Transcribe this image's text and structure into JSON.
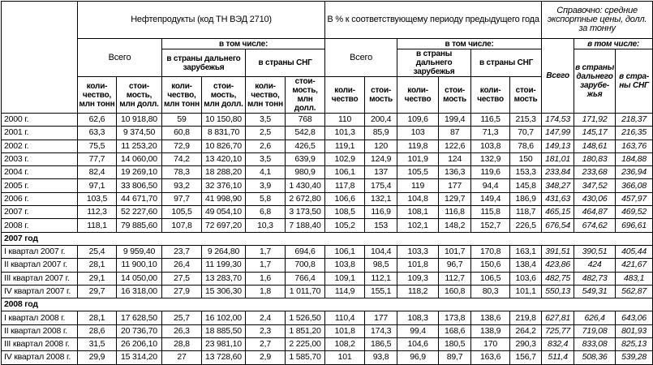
{
  "header": {
    "main_title": "Нефтепродукты (код ТН ВЭД 2710)",
    "pct_title": "В % к соответствующему периоду предыдущего года",
    "ref_title": "Справочно: средние экспортные цены, долл. за тонну",
    "total": "Всего",
    "including": "в том числе:",
    "far_abroad": "в страны дальнего зарубежья",
    "cis": "в страны СНГ",
    "qty_unit": "коли-чество, млн тонн",
    "val_unit": "стои-мость, млн долл.",
    "qty_pct": "коли-чество",
    "val_pct": "стои-мость",
    "ref_total": "Всего",
    "ref_including": "в том числе:",
    "ref_far_abroad": "в страны дальнего зарубе-жья",
    "ref_cis": "в стра-ны СНГ"
  },
  "sections": [
    {
      "title": "",
      "rows": [
        {
          "label": "2000 г.",
          "values": [
            "62,6",
            "10 918,80",
            "59",
            "10 150,80",
            "3,5",
            "768",
            "110",
            "200,4",
            "109,6",
            "199,4",
            "116,5",
            "215,3",
            "174,53",
            "171,92",
            "218,37"
          ]
        },
        {
          "label": "2001 г.",
          "values": [
            "63,3",
            "9 374,50",
            "60,8",
            "8 831,70",
            "2,5",
            "542,8",
            "101,3",
            "85,9",
            "103",
            "87",
            "71,3",
            "70,7",
            "147,99",
            "145,17",
            "216,35"
          ]
        },
        {
          "label": "2002 г.",
          "values": [
            "75,5",
            "11 253,20",
            "72,9",
            "10 826,70",
            "2,6",
            "426,5",
            "119,1",
            "120",
            "119,8",
            "122,6",
            "103,8",
            "78,6",
            "149,13",
            "148,61",
            "163,76"
          ]
        },
        {
          "label": "2003 г.",
          "values": [
            "77,7",
            "14 060,00",
            "74,2",
            "13 420,10",
            "3,5",
            "639,9",
            "102,9",
            "124,9",
            "101,9",
            "124",
            "132,9",
            "150",
            "181,01",
            "180,83",
            "184,88"
          ]
        },
        {
          "label": "2004 г.",
          "values": [
            "82,4",
            "19 269,10",
            "78,3",
            "18 288,20",
            "4,1",
            "980,9",
            "106,1",
            "137",
            "105,5",
            "136,3",
            "119,6",
            "153,3",
            "233,84",
            "233,68",
            "236,94"
          ]
        },
        {
          "label": "2005 г.",
          "values": [
            "97,1",
            "33 806,50",
            "93,2",
            "32 376,10",
            "3,9",
            "1 430,40",
            "117,8",
            "175,4",
            "119",
            "177",
            "94,4",
            "145,8",
            "348,27",
            "347,52",
            "366,08"
          ]
        },
        {
          "label": "2006 г.",
          "values": [
            "103,5",
            "44 671,70",
            "97,7",
            "41 998,90",
            "5,8",
            "2 672,80",
            "106,6",
            "132,1",
            "104,8",
            "129,7",
            "149,4",
            "186,9",
            "431,63",
            "430,06",
            "457,97"
          ]
        },
        {
          "label": "2007 г.",
          "values": [
            "112,3",
            "52 227,60",
            "105,5",
            "49 054,10",
            "6,8",
            "3 173,50",
            "108,5",
            "116,9",
            "108,1",
            "116,8",
            "115,8",
            "118,7",
            "465,15",
            "464,87",
            "469,52"
          ]
        },
        {
          "label": "2008 г.",
          "values": [
            "118,1",
            "79 885,60",
            "107,8",
            "72 697,20",
            "10,3",
            "7 188,40",
            "105,2",
            "153",
            "102,1",
            "148,2",
            "152,7",
            "226,5",
            "676,54",
            "674,62",
            "696,61"
          ]
        }
      ]
    },
    {
      "title": "2007 год",
      "rows": [
        {
          "label": "I квартал 2007 г.",
          "values": [
            "25,4",
            "9 959,40",
            "23,7",
            "9 264,80",
            "1,7",
            "694,6",
            "106,1",
            "104,4",
            "103,3",
            "101,7",
            "170,8",
            "163,1",
            "391,51",
            "390,51",
            "405,44"
          ]
        },
        {
          "label": "II квартал 2007 г.",
          "values": [
            "28,1",
            "11 900,10",
            "26,4",
            "11 199,30",
            "1,7",
            "700,8",
            "103,8",
            "98,5",
            "101,8",
            "96,7",
            "150,6",
            "138,4",
            "423,86",
            "424",
            "421,67"
          ]
        },
        {
          "label": "III квартал 2007 г.",
          "values": [
            "29,1",
            "14 050,00",
            "27,5",
            "13 283,70",
            "1,6",
            "766,4",
            "109,1",
            "112,1",
            "109,3",
            "112,7",
            "106,5",
            "103,6",
            "482,75",
            "482,73",
            "483,1"
          ]
        },
        {
          "label": "IV квартал 2007 г.",
          "values": [
            "29,7",
            "16 318,00",
            "27,9",
            "15 306,30",
            "1,8",
            "1 011,70",
            "114,9",
            "155,1",
            "118,2",
            "160,8",
            "80,3",
            "101,1",
            "550,13",
            "549,31",
            "562,87"
          ]
        }
      ]
    },
    {
      "title": "2008 год",
      "rows": [
        {
          "label": "I квартал 2008 г.",
          "values": [
            "28,1",
            "17 628,50",
            "25,7",
            "16 102,00",
            "2,4",
            "1 526,50",
            "110,4",
            "177",
            "108,3",
            "173,8",
            "138,6",
            "219,8",
            "627,81",
            "626,4",
            "643,06"
          ]
        },
        {
          "label": "II квартал 2008 г.",
          "values": [
            "28,6",
            "20 736,70",
            "26,3",
            "18 885,50",
            "2,3",
            "1 851,20",
            "101,8",
            "174,3",
            "99,4",
            "168,6",
            "138,9",
            "264,2",
            "725,77",
            "719,08",
            "801,93"
          ]
        },
        {
          "label": "III квартал 2008 г.",
          "values": [
            "31,5",
            "26 206,10",
            "28,8",
            "23 981,10",
            "2,7",
            "2 225,00",
            "108,2",
            "186,5",
            "104,6",
            "180,5",
            "170",
            "290,3",
            "832,4",
            "833,08",
            "825,13"
          ]
        },
        {
          "label": "IV квартал 2008 г.",
          "values": [
            "29,9",
            "15 314,20",
            "27",
            "13 728,60",
            "2,9",
            "1 585,70",
            "101",
            "93,8",
            "96,9",
            "89,7",
            "163,6",
            "156,7",
            "511,4",
            "508,36",
            "539,28"
          ]
        }
      ]
    }
  ]
}
